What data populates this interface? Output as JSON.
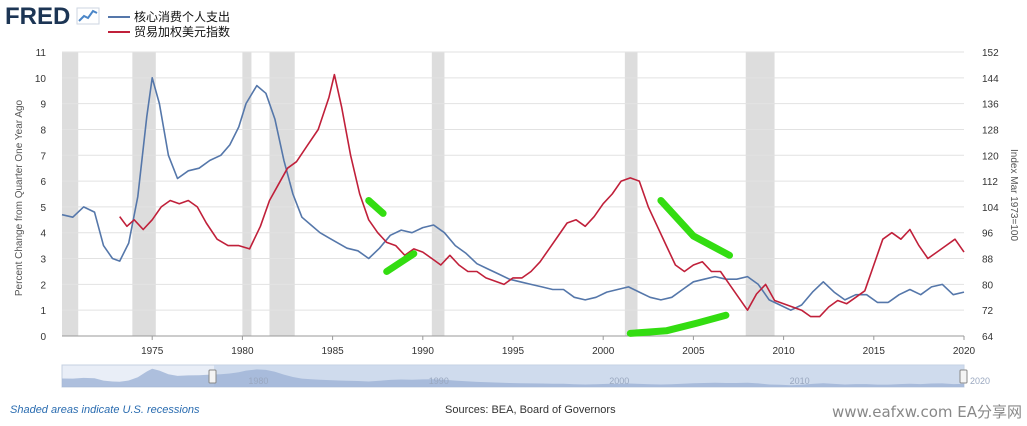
{
  "brand": {
    "logo_text": "FRED"
  },
  "footer": {
    "recession_note": "Shaded areas indicate U.S. recessions",
    "sources": "Sources: BEA, Board of Governors",
    "watermark": "www.eafxw.com EA分享网"
  },
  "colors": {
    "series_blue": "#5577aa",
    "series_red": "#c0203a",
    "recession": "#dddddd",
    "annotation_green": "#33dd11",
    "grid": "#e2e2e2"
  },
  "chart_data": {
    "type": "line",
    "title": "",
    "xlabel": "",
    "ylabel": "Percent Change from Quarter One Year Ago",
    "ylabel_right": "Index Mar 1973=100",
    "xlim": [
      1970,
      2020
    ],
    "ylim": [
      0,
      11
    ],
    "ylim_right": [
      64,
      152
    ],
    "x_ticks": [
      "1975",
      "1980",
      "1985",
      "1990",
      "1995",
      "2000",
      "2005",
      "2010",
      "2015",
      "2020"
    ],
    "y_ticks": [
      "0",
      "1",
      "2",
      "3",
      "4",
      "5",
      "6",
      "7",
      "8",
      "9",
      "10",
      "11"
    ],
    "y_ticks_right": [
      "64",
      "72",
      "80",
      "88",
      "96",
      "104",
      "112",
      "120",
      "128",
      "136",
      "144",
      "152"
    ],
    "grid": true,
    "legend_position": "top-left",
    "recessions": [
      [
        1970.0,
        1970.9
      ],
      [
        1973.9,
        1975.2
      ],
      [
        1980.0,
        1980.5
      ],
      [
        1981.5,
        1982.9
      ],
      [
        1990.5,
        1991.2
      ],
      [
        2001.2,
        2001.9
      ],
      [
        2007.9,
        2009.5
      ]
    ],
    "series": [
      {
        "name": "核心消费个人支出",
        "axis": "left",
        "x": [
          1970.0,
          1970.6,
          1971.2,
          1971.8,
          1972.3,
          1972.8,
          1973.2,
          1973.7,
          1974.2,
          1974.7,
          1975.0,
          1975.4,
          1975.9,
          1976.4,
          1977.0,
          1977.6,
          1978.2,
          1978.8,
          1979.3,
          1979.8,
          1980.2,
          1980.8,
          1981.3,
          1981.8,
          1982.3,
          1982.8,
          1983.3,
          1983.8,
          1984.3,
          1984.8,
          1985.3,
          1985.8,
          1986.4,
          1987.0,
          1987.6,
          1988.2,
          1988.8,
          1989.4,
          1990.0,
          1990.6,
          1991.2,
          1991.8,
          1992.4,
          1993.0,
          1993.6,
          1994.2,
          1994.8,
          1995.4,
          1996.0,
          1996.6,
          1997.2,
          1997.8,
          1998.4,
          1999.0,
          1999.6,
          2000.2,
          2000.8,
          2001.4,
          2002.0,
          2002.6,
          2003.2,
          2003.8,
          2004.4,
          2005.0,
          2005.6,
          2006.2,
          2006.8,
          2007.4,
          2008.0,
          2008.6,
          2009.2,
          2009.8,
          2010.4,
          2011.0,
          2011.6,
          2012.2,
          2012.8,
          2013.4,
          2014.0,
          2014.6,
          2015.2,
          2015.8,
          2016.4,
          2017.0,
          2017.6,
          2018.2,
          2018.8,
          2019.4,
          2020.0
        ],
        "values": [
          4.7,
          4.6,
          5.0,
          4.8,
          3.5,
          3.0,
          2.9,
          3.6,
          5.4,
          8.5,
          10.0,
          9.0,
          7.0,
          6.1,
          6.4,
          6.5,
          6.8,
          7.0,
          7.4,
          8.1,
          9.0,
          9.7,
          9.4,
          8.4,
          6.8,
          5.5,
          4.6,
          4.3,
          4.0,
          3.8,
          3.6,
          3.4,
          3.3,
          3.0,
          3.4,
          3.9,
          4.1,
          4.0,
          4.2,
          4.3,
          4.0,
          3.5,
          3.2,
          2.8,
          2.6,
          2.4,
          2.2,
          2.1,
          2.0,
          1.9,
          1.8,
          1.8,
          1.5,
          1.4,
          1.5,
          1.7,
          1.8,
          1.9,
          1.7,
          1.5,
          1.4,
          1.5,
          1.8,
          2.1,
          2.2,
          2.3,
          2.2,
          2.2,
          2.3,
          2.0,
          1.4,
          1.2,
          1.0,
          1.2,
          1.7,
          2.1,
          1.7,
          1.4,
          1.6,
          1.6,
          1.3,
          1.3,
          1.6,
          1.8,
          1.6,
          1.9,
          2.0,
          1.6,
          1.7
        ]
      },
      {
        "name": "贸易加权美元指数",
        "axis": "right",
        "x": [
          1973.2,
          1973.6,
          1974.0,
          1974.5,
          1975.0,
          1975.5,
          1976.0,
          1976.5,
          1977.0,
          1977.5,
          1978.0,
          1978.6,
          1979.2,
          1979.8,
          1980.4,
          1981.0,
          1981.5,
          1982.0,
          1982.5,
          1983.0,
          1983.6,
          1984.2,
          1984.8,
          1985.1,
          1985.5,
          1986.0,
          1986.5,
          1987.0,
          1987.5,
          1988.0,
          1988.5,
          1989.0,
          1989.5,
          1990.0,
          1990.5,
          1991.0,
          1991.5,
          1992.0,
          1992.5,
          1993.0,
          1993.5,
          1994.0,
          1994.5,
          1995.0,
          1995.5,
          1996.0,
          1996.5,
          1997.0,
          1997.5,
          1998.0,
          1998.5,
          1999.0,
          1999.5,
          2000.0,
          2000.5,
          2001.0,
          2001.5,
          2002.0,
          2002.5,
          2003.0,
          2003.5,
          2004.0,
          2004.5,
          2005.0,
          2005.5,
          2006.0,
          2006.5,
          2007.0,
          2007.5,
          2008.0,
          2008.5,
          2009.0,
          2009.5,
          2010.0,
          2010.5,
          2011.0,
          2011.5,
          2012.0,
          2012.5,
          2013.0,
          2013.5,
          2014.0,
          2014.5,
          2015.0,
          2015.5,
          2016.0,
          2016.5,
          2017.0,
          2017.5,
          2018.0,
          2018.5,
          2019.0,
          2019.5,
          2020.0
        ],
        "values": [
          101,
          98,
          100,
          97,
          100,
          104,
          106,
          105,
          106,
          104,
          99,
          94,
          92,
          92,
          91,
          98,
          106,
          111,
          116,
          118,
          123,
          128,
          138,
          145,
          135,
          120,
          108,
          100,
          96,
          93,
          92,
          89,
          91,
          90,
          88,
          86,
          89,
          86,
          84,
          84,
          82,
          81,
          80,
          82,
          82,
          84,
          87,
          91,
          95,
          99,
          100,
          98,
          101,
          105,
          108,
          112,
          113,
          112,
          104,
          98,
          92,
          86,
          84,
          86,
          87,
          84,
          84,
          80,
          76,
          72,
          77,
          80,
          75,
          74,
          73,
          72,
          70,
          70,
          73,
          75,
          74,
          76,
          78,
          86,
          94,
          96,
          94,
          97,
          92,
          88,
          90,
          92,
          94,
          90
        ]
      }
    ],
    "annotations": [
      {
        "kind": "green-stroke",
        "points": [
          [
            1987.0,
            106.0
          ],
          [
            1987.8,
            102.0
          ]
        ]
      },
      {
        "kind": "green-stroke",
        "points": [
          [
            1988.0,
            84.0
          ],
          [
            1989.5,
            89.5
          ]
        ]
      },
      {
        "kind": "green-stroke",
        "points": [
          [
            2003.2,
            106.0
          ],
          [
            2005.0,
            95.0
          ],
          [
            2007.0,
            89.0
          ]
        ]
      },
      {
        "kind": "green-stroke",
        "points": [
          [
            2001.5,
            0.1
          ],
          [
            2003.5,
            0.2
          ],
          [
            2005.2,
            0.5
          ],
          [
            2006.8,
            0.8
          ]
        ]
      }
    ]
  }
}
